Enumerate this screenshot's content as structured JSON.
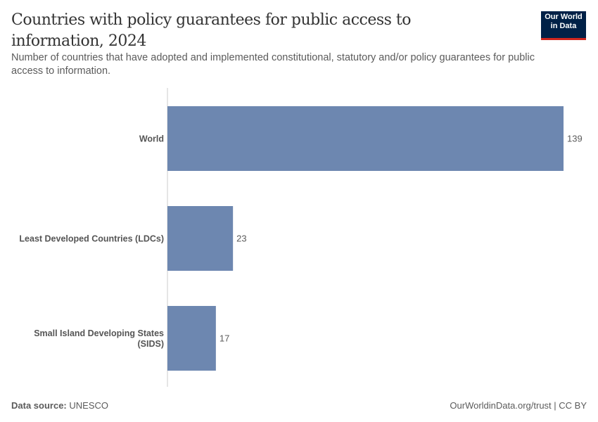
{
  "header": {
    "title": "Countries with policy guarantees for public access to information, 2024",
    "subtitle": "Number of countries that have adopted and implemented constitutional, statutory and/or policy guarantees for public access to information.",
    "logo": [
      "Our World",
      "in Data"
    ]
  },
  "footer": {
    "source_label": "Data source:",
    "source": "UNESCO",
    "license": "OurWorldinData.org/trust | CC BY"
  },
  "chart_data": {
    "type": "bar",
    "orientation": "horizontal",
    "title": "Countries with policy guarantees for public access to information, 2024",
    "categories": [
      "World",
      "Least Developed Countries (LDCs)",
      "Small Island Developing States (SIDS)"
    ],
    "category_label_lines": [
      [
        "World"
      ],
      [
        "Least Developed Countries (LDCs)"
      ],
      [
        "Small Island Developing States",
        "(SIDS)"
      ]
    ],
    "values": [
      139,
      23,
      17
    ],
    "xlim": [
      0,
      139
    ],
    "grid": false,
    "bar_color": "#6d87b0"
  }
}
